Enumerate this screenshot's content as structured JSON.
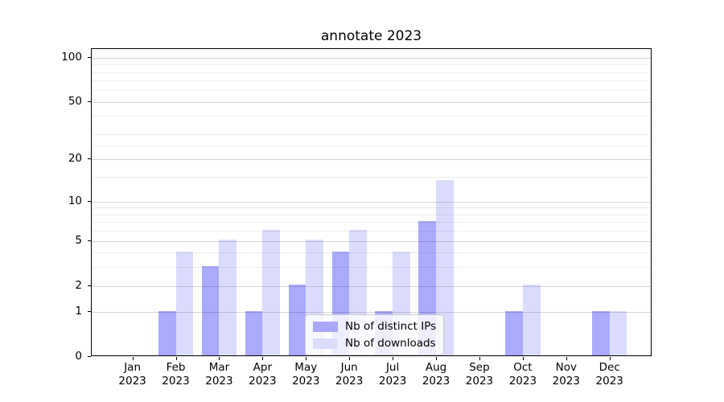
{
  "title": "annotate 2023",
  "legend": {
    "items": [
      {
        "label": "Nb of distinct IPs",
        "color": "#a9a9f7"
      },
      {
        "label": "Nb of downloads",
        "color": "#dcdcfb"
      }
    ]
  },
  "y_axis": {
    "tick_labels": [
      "0",
      "1",
      "2",
      "5",
      "10",
      "20",
      "50",
      "100"
    ],
    "tick_values": [
      0,
      1,
      2,
      5,
      10,
      20,
      50,
      100
    ]
  },
  "x_axis": {
    "year_line": "2023",
    "month_labels": [
      "Jan",
      "Feb",
      "Mar",
      "Apr",
      "May",
      "Jun",
      "Jul",
      "Aug",
      "Sep",
      "Oct",
      "Nov",
      "Dec"
    ]
  },
  "chart_data": {
    "type": "bar",
    "title": "annotate 2023",
    "categories": [
      "Jan 2023",
      "Feb 2023",
      "Mar 2023",
      "Apr 2023",
      "May 2023",
      "Jun 2023",
      "Jul 2023",
      "Aug 2023",
      "Sep 2023",
      "Oct 2023",
      "Nov 2023",
      "Dec 2023"
    ],
    "series": [
      {
        "name": "Nb of distinct IPs",
        "color": "#a9a9f7",
        "values": [
          0,
          1,
          3,
          1,
          2,
          4,
          1,
          7,
          0,
          1,
          0,
          1
        ]
      },
      {
        "name": "Nb of downloads",
        "color": "#dcdcfb",
        "values": [
          0,
          4,
          5,
          6,
          5,
          6,
          4,
          14,
          0,
          2,
          0,
          1
        ]
      }
    ],
    "ylabel": "",
    "xlabel": "",
    "yscale": "log1p",
    "ytick_values": [
      0,
      1,
      2,
      5,
      10,
      20,
      50,
      100
    ],
    "ylim": [
      0,
      110
    ],
    "grid": true,
    "legend_position": "lower center"
  }
}
